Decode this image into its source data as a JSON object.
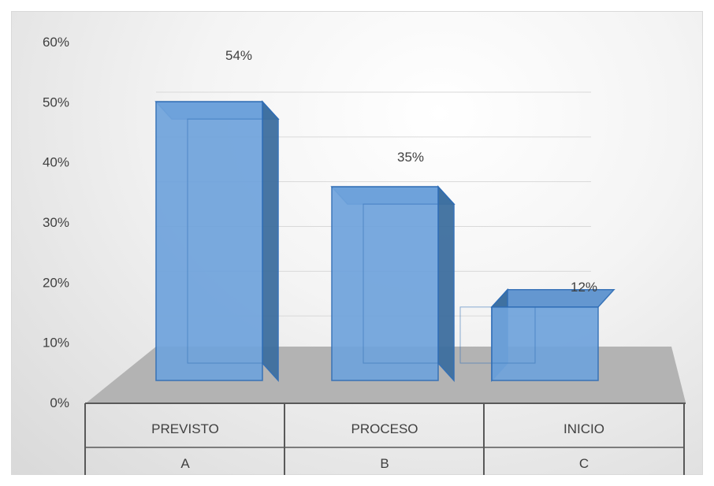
{
  "chart_data": {
    "type": "bar",
    "categories": [
      "PREVISTO",
      "PROCESO",
      "INICIO"
    ],
    "sub_categories": [
      "A",
      "B",
      "C"
    ],
    "values": [
      54,
      35,
      12
    ],
    "data_labels": [
      "54%",
      "35%",
      "12%"
    ],
    "y_ticks": [
      "0%",
      "10%",
      "20%",
      "30%",
      "40%",
      "50%",
      "60%"
    ],
    "ylim": [
      0,
      60
    ],
    "title": "",
    "xlabel": "",
    "ylabel": "",
    "grid": true,
    "legend": "none",
    "colors": {
      "bar_front": "#6fa3dc",
      "bar_side": "#3e6f9f",
      "bar_top": "#5d93cf",
      "bar_edge": "#2f6db5",
      "floor": "#b3b3b3",
      "axis": "#595959",
      "text": "#404040"
    }
  }
}
